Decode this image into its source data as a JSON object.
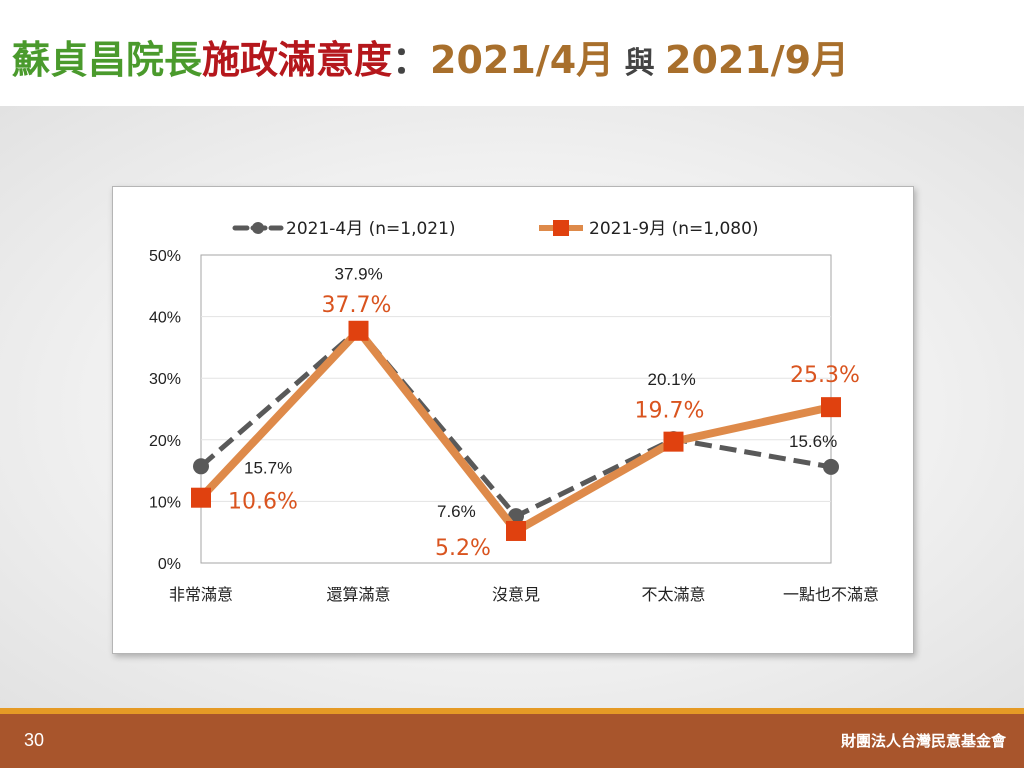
{
  "slide": {
    "title_part1": "蘇貞昌院長",
    "title_part2": "施政滿意度",
    "title_sep": "：",
    "title_part3": "2021/4月",
    "title_part4": " 與 ",
    "title_part5": "2021/9月",
    "page_number": "30",
    "organization": "財團法人台灣民意基金會",
    "colors": {
      "title_green": "#4a9a2c",
      "title_red": "#b5171c",
      "title_brown": "#a86f2c",
      "footer": "#a8552c",
      "footer_line": "#e59a25"
    }
  },
  "chart_data": {
    "type": "line",
    "categories": [
      "非常滿意",
      "還算滿意",
      "沒意見",
      "不太滿意",
      "一點也不滿意"
    ],
    "series": [
      {
        "name": "2021-4月 (n=1,021)",
        "values": [
          15.7,
          37.9,
          7.6,
          20.1,
          15.6
        ],
        "labels": [
          "15.7%",
          "37.9%",
          "7.6%",
          "20.1%",
          "15.6%"
        ],
        "color": "#595959",
        "style": "dashed",
        "marker": "circle"
      },
      {
        "name": "2021-9月 (n=1,080)",
        "values": [
          10.6,
          37.7,
          5.2,
          19.7,
          25.3
        ],
        "labels": [
          "10.6%",
          "37.7%",
          "5.2%",
          "19.7%",
          "25.3%"
        ],
        "color": "#de8a4a",
        "label_color": "#d9541f",
        "marker_color": "#e0410f",
        "style": "solid",
        "marker": "square"
      }
    ],
    "yticks": [
      "0%",
      "10%",
      "20%",
      "30%",
      "40%",
      "50%"
    ],
    "ylim": [
      0,
      50
    ],
    "grid": true,
    "legend": "top"
  }
}
